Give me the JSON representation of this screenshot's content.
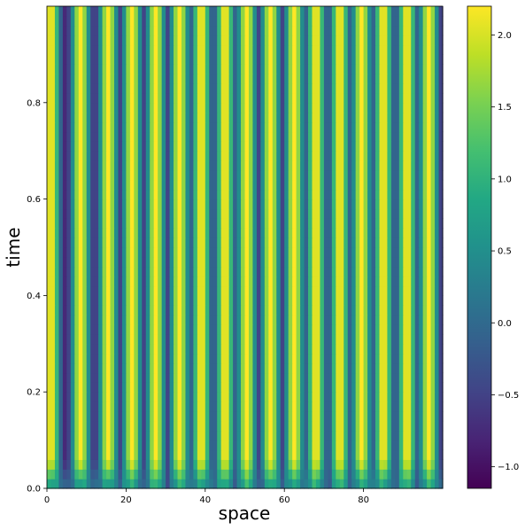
{
  "chart_data": {
    "type": "heatmap",
    "title": "",
    "xlabel": "space",
    "ylabel": "time",
    "xlim": [
      0,
      100
    ],
    "ylim": [
      0,
      1
    ],
    "x_ticks": [
      0,
      20,
      40,
      60,
      80
    ],
    "x_tick_labels": [
      "0",
      "20",
      "40",
      "60",
      "80"
    ],
    "y_ticks": [
      0.0,
      0.2,
      0.4,
      0.6,
      0.8
    ],
    "y_tick_labels": [
      "0.0",
      "0.2",
      "0.4",
      "0.6",
      "0.8"
    ],
    "colormap": "viridis",
    "vmin": -1.15,
    "vmax": 2.2,
    "colorbar_ticks": [
      -1.0,
      -0.5,
      0.0,
      0.5,
      1.0,
      1.5,
      2.0
    ],
    "colorbar_tick_labels": [
      "−1.0",
      "−0.5",
      "0.0",
      "0.5",
      "1.0",
      "1.5",
      "2.0"
    ],
    "stripe_centers": [
      1.0,
      8.5,
      15.5,
      21.5,
      27.5,
      33.5,
      39.0,
      45.0,
      50.5,
      56.5,
      62.5,
      68.0,
      74.0,
      79.5,
      85.0,
      91.0,
      96.5
    ],
    "stripe_half_width": 1.8,
    "stripe_peak": 2.2,
    "background_value": -1.1,
    "transient_end_time": 0.06
  }
}
